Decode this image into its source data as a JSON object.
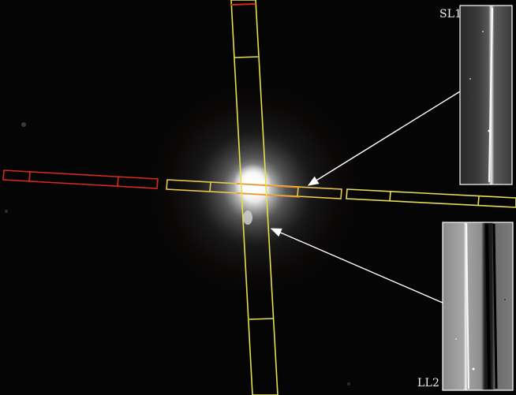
{
  "image": {
    "description_labels": {
      "inset_top": "SL1",
      "inset_bottom": "LL2"
    },
    "colors": {
      "background": "#050505",
      "slit_yellow": "#e6e04a",
      "slit_red": "#d62a1f",
      "arrow": "#ffffff"
    }
  }
}
